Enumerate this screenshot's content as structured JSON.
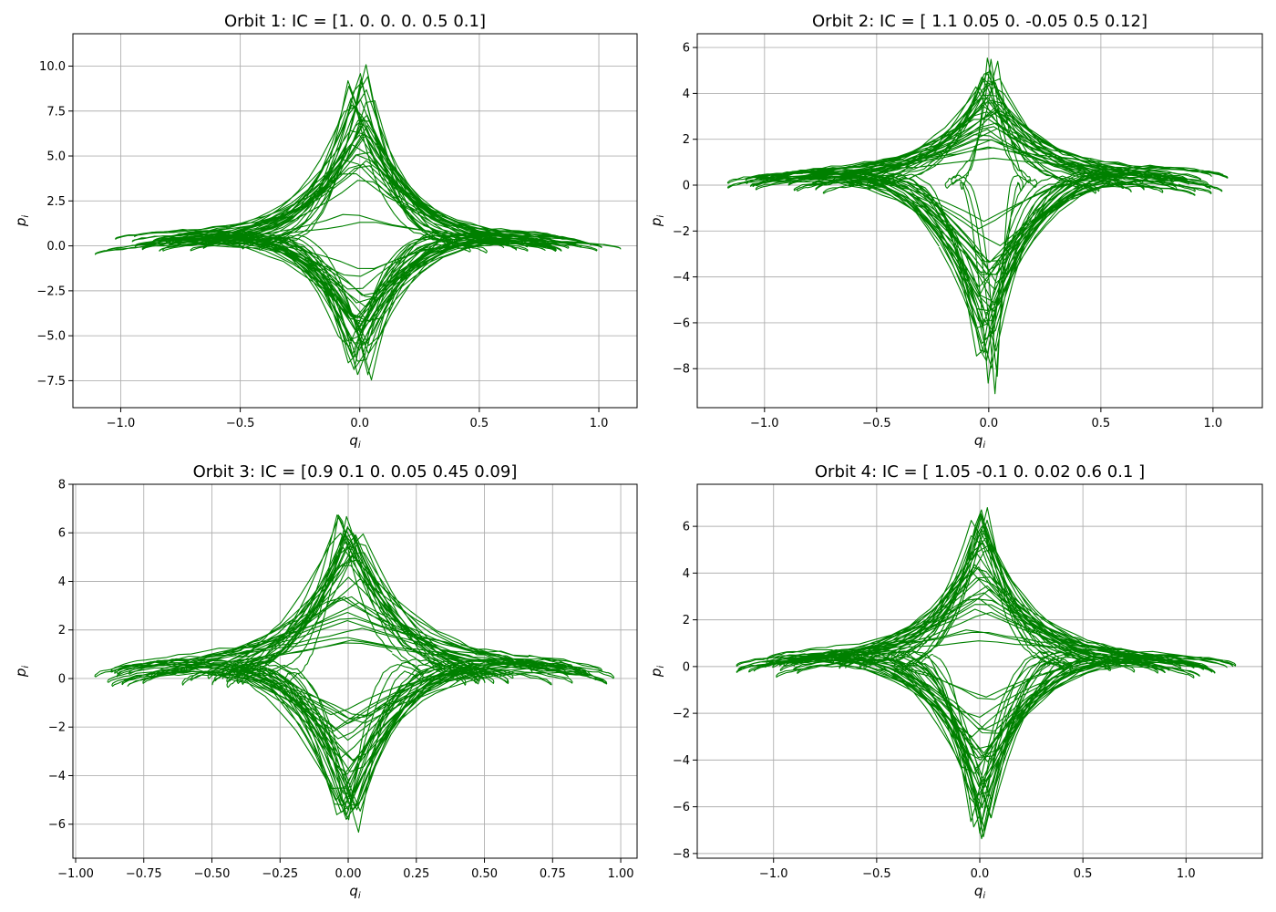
{
  "chart_data": [
    {
      "type": "line",
      "title": "Orbit 1: IC = [1.  0.  0.  0.  0.5 0.1]",
      "xlabel": "q_i",
      "ylabel": "p_i",
      "xlim": [
        -1.2,
        1.16
      ],
      "ylim": [
        -9.0,
        11.8
      ],
      "xticks": [
        -1.0,
        -0.5,
        0.0,
        0.5,
        1.0
      ],
      "xtick_labels": [
        "−1.0",
        "−0.5",
        "0.0",
        "0.5",
        "1.0"
      ],
      "yticks": [
        -7.5,
        -5.0,
        -2.5,
        0.0,
        2.5,
        5.0,
        7.5,
        10.0
      ],
      "ytick_labels": [
        "−7.5",
        "−5.0",
        "−2.5",
        "0.0",
        "2.5",
        "5.0",
        "7.5",
        "10.0"
      ],
      "grid": true,
      "color": "#008000",
      "q_extent": [
        -1.08,
        1.05
      ],
      "p_extent": [
        -8.1,
        10.8
      ],
      "waist": [
        0.28,
        0.36
      ],
      "shape": 3.2,
      "seed": 1
    },
    {
      "type": "line",
      "title": "Orbit 2: IC = [ 1.1   0.05  0.   -0.05  0.5   0.12]",
      "xlabel": "q_i",
      "ylabel": "p_i",
      "xlim": [
        -1.3,
        1.22
      ],
      "ylim": [
        -9.7,
        6.6
      ],
      "xticks": [
        -1.0,
        -0.5,
        0.0,
        0.5,
        1.0
      ],
      "xtick_labels": [
        "−1.0",
        "−0.5",
        "0.0",
        "0.5",
        "1.0"
      ],
      "yticks": [
        -8,
        -6,
        -4,
        -2,
        0,
        2,
        4,
        6
      ],
      "ytick_labels": [
        "−8",
        "−6",
        "−4",
        "−2",
        "0",
        "2",
        "4",
        "6"
      ],
      "grid": true,
      "color": "#008000",
      "q_extent": [
        -1.2,
        1.1
      ],
      "p_extent": [
        -9.0,
        5.8
      ],
      "waist": [
        0.26,
        0.34
      ],
      "shape": 3.0,
      "seed": 2
    },
    {
      "type": "line",
      "title": "Orbit 3: IC = [0.9  0.1  0.   0.05 0.45 0.09]",
      "xlabel": "q_i",
      "ylabel": "p_i",
      "xlim": [
        -1.01,
        1.06
      ],
      "ylim": [
        -7.4,
        8.0
      ],
      "xticks": [
        -1.0,
        -0.75,
        -0.5,
        -0.25,
        0.0,
        0.25,
        0.5,
        0.75,
        1.0
      ],
      "xtick_labels": [
        "−1.00",
        "−0.75",
        "−0.50",
        "−0.25",
        "0.00",
        "0.25",
        "0.50",
        "0.75",
        "1.00"
      ],
      "yticks": [
        -6,
        -4,
        -2,
        0,
        2,
        4,
        6,
        8
      ],
      "ytick_labels": [
        "−6",
        "−4",
        "−2",
        "0",
        "2",
        "4",
        "6",
        "8"
      ],
      "grid": true,
      "color": "#008000",
      "q_extent": [
        -0.92,
        0.97
      ],
      "p_extent": [
        -6.6,
        7.3
      ],
      "waist": [
        0.35,
        0.45
      ],
      "shape": 2.4,
      "seed": 3
    },
    {
      "type": "line",
      "title": "Orbit 4: IC = [ 1.05 -0.1   0.    0.02  0.6   0.1 ]",
      "xlabel": "q_i",
      "ylabel": "p_i",
      "xlim": [
        -1.37,
        1.37
      ],
      "ylim": [
        -8.2,
        7.8
      ],
      "xticks": [
        -1.0,
        -0.5,
        0.0,
        0.5,
        1.0
      ],
      "xtick_labels": [
        "−1.0",
        "−0.5",
        "0.0",
        "0.5",
        "1.0"
      ],
      "yticks": [
        -8,
        -6,
        -4,
        -2,
        0,
        2,
        4,
        6
      ],
      "ytick_labels": [
        "−8",
        "−6",
        "−4",
        "−2",
        "0",
        "2",
        "4",
        "6"
      ],
      "grid": true,
      "color": "#008000",
      "q_extent": [
        -1.22,
        1.25
      ],
      "p_extent": [
        -7.6,
        7.1
      ],
      "waist": [
        0.3,
        0.38
      ],
      "shape": 2.8,
      "seed": 4
    }
  ]
}
